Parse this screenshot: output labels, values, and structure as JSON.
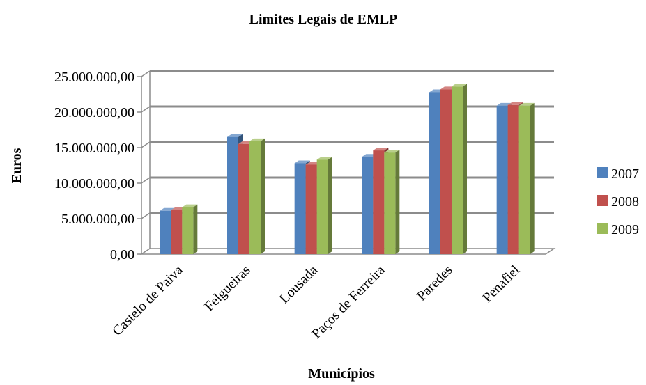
{
  "chart_data": {
    "type": "bar",
    "title": "Limites Legais de EMLP",
    "xlabel": "Municípios",
    "ylabel": "Euros",
    "categories": [
      "Castelo de Paiva",
      "Felgueiras",
      "Lousada",
      "Paços de Ferreira",
      "Paredes",
      "Penafiel"
    ],
    "series": [
      {
        "name": "2007",
        "color": "#4F81BD",
        "values": [
          6100000,
          16500000,
          12800000,
          13700000,
          22800000,
          20900000
        ]
      },
      {
        "name": "2008",
        "color": "#C0504D",
        "values": [
          6200000,
          15500000,
          12600000,
          14600000,
          23200000,
          21000000
        ]
      },
      {
        "name": "2009",
        "color": "#9BBB59",
        "values": [
          6600000,
          15900000,
          13300000,
          14300000,
          23600000,
          20900000
        ]
      }
    ],
    "ylim": [
      0,
      25000000
    ],
    "yticks": [
      "0,00",
      "5.000.000,00",
      "10.000.000,00",
      "15.000.000,00",
      "20.000.000,00",
      "25.000.000,00"
    ],
    "grid": true,
    "legend_position": "right",
    "style": "3d-clustered-column"
  }
}
